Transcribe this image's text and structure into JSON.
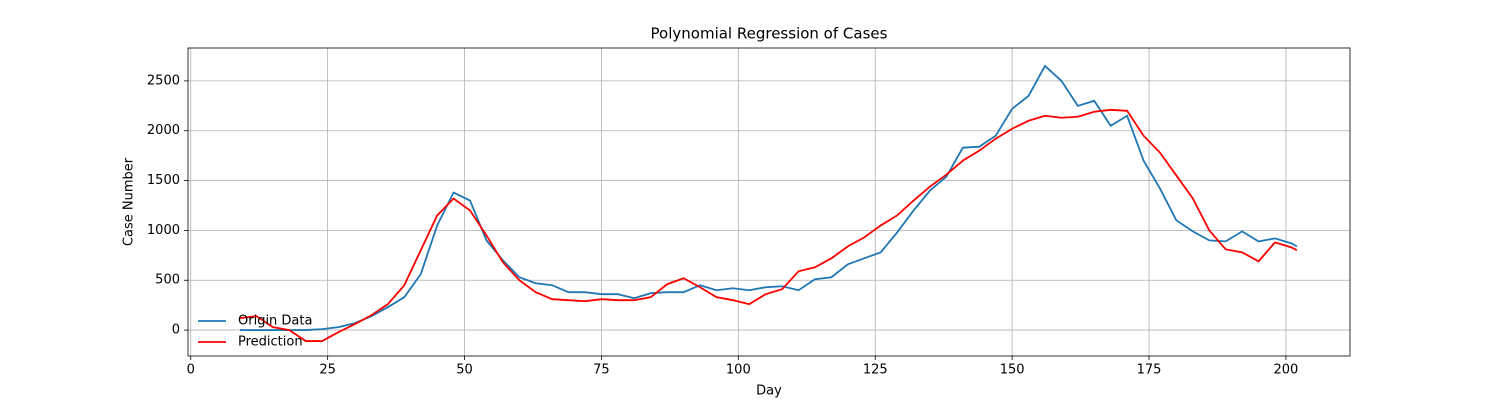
{
  "chart_data": {
    "type": "line",
    "title": "Polynomial Regression of Cases",
    "x_label": "Day",
    "y_label": "Case Number",
    "x": [
      9,
      12,
      15,
      18,
      21,
      24,
      27,
      30,
      33,
      36,
      39,
      42,
      45,
      48,
      51,
      54,
      57,
      60,
      63,
      66,
      69,
      72,
      75,
      78,
      81,
      84,
      87,
      90,
      93,
      96,
      99,
      102,
      105,
      108,
      111,
      114,
      117,
      120,
      123,
      126,
      129,
      132,
      135,
      138,
      141,
      144,
      147,
      150,
      153,
      156,
      159,
      162,
      165,
      168,
      171,
      174,
      177,
      180,
      183,
      186,
      189,
      192,
      195,
      198,
      201,
      202
    ],
    "series": [
      {
        "name": "Origin Data",
        "color": "#1f77b4",
        "values": [
          0,
          0,
          0,
          0,
          0,
          10,
          30,
          70,
          140,
          230,
          330,
          560,
          1050,
          1380,
          1300,
          900,
          700,
          530,
          470,
          450,
          380,
          380,
          360,
          360,
          320,
          370,
          380,
          380,
          450,
          400,
          420,
          400,
          430,
          440,
          400,
          510,
          530,
          660,
          720,
          780,
          980,
          1200,
          1400,
          1540,
          1830,
          1840,
          1950,
          2220,
          2350,
          2650,
          2500,
          2250,
          2300,
          2050,
          2150,
          1700,
          1420,
          1100,
          990,
          900,
          890,
          990,
          890,
          920,
          870,
          840
        ]
      },
      {
        "name": "Prediction",
        "color": "#ff0000",
        "values": [
          120,
          140,
          30,
          0,
          -110,
          -110,
          -20,
          60,
          150,
          260,
          450,
          800,
          1150,
          1320,
          1200,
          950,
          680,
          500,
          380,
          310,
          300,
          290,
          310,
          300,
          300,
          330,
          460,
          520,
          430,
          330,
          300,
          260,
          360,
          410,
          590,
          630,
          720,
          840,
          930,
          1050,
          1150,
          1300,
          1440,
          1560,
          1700,
          1800,
          1920,
          2020,
          2100,
          2150,
          2130,
          2140,
          2190,
          2210,
          2200,
          1950,
          1780,
          1550,
          1320,
          1000,
          810,
          780,
          690,
          880,
          830,
          800
        ]
      }
    ],
    "xlim": [
      -0.5,
      211.7
    ],
    "ylim": [
      -260,
      2830
    ],
    "xticks": [
      0,
      25,
      50,
      75,
      100,
      125,
      150,
      175,
      200
    ],
    "yticks": [
      0,
      500,
      1000,
      1500,
      2000,
      2500
    ],
    "grid": true,
    "legend": "lower left"
  }
}
